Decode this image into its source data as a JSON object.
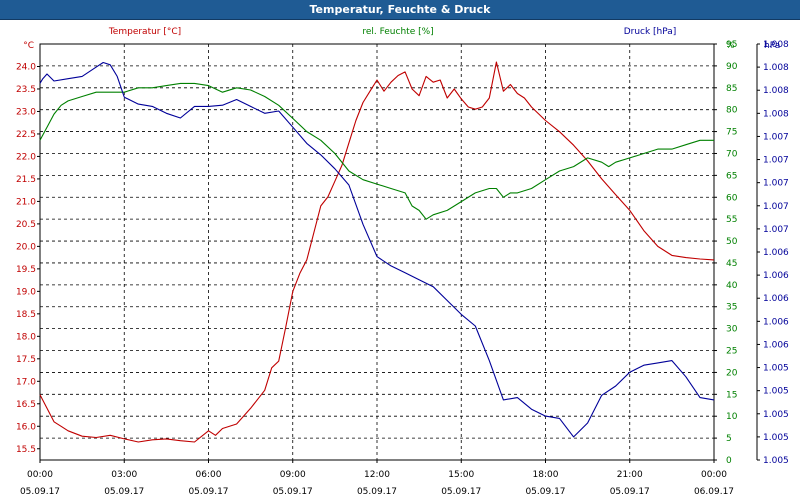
{
  "window": {
    "title": "Temperatur, Feuchte & Druck"
  },
  "colors": {
    "title_bar": "#1f5b94",
    "temperature": "#c00000",
    "humidity": "#008000",
    "pressure": "#000099",
    "grid": "#000000"
  },
  "chart_data": {
    "type": "line",
    "title": "Temperatur, Feuchte & Druck",
    "grid": true,
    "x_axis": {
      "range": [
        "05.09.17 00:00",
        "06.09.17 00:00"
      ],
      "tick_times": [
        "00:00",
        "03:00",
        "06:00",
        "09:00",
        "12:00",
        "15:00",
        "18:00",
        "21:00",
        "00:00"
      ],
      "tick_dates": [
        "05.09.17",
        "05.09.17",
        "05.09.17",
        "05.09.17",
        "05.09.17",
        "05.09.17",
        "05.09.17",
        "05.09.17",
        "06.09.17"
      ]
    },
    "axes": {
      "temperature": {
        "label": "Temperatur [°C]",
        "unit": "°C",
        "side": "left",
        "range": [
          15.25,
          24.5
        ],
        "ticks": [
          "15.5",
          "16.0",
          "16.5",
          "17.0",
          "17.5",
          "18.0",
          "18.5",
          "19.0",
          "19.5",
          "20.0",
          "20.5",
          "21.0",
          "21.5",
          "22.0",
          "22.5",
          "23.0",
          "23.5",
          "24.0"
        ]
      },
      "humidity": {
        "label": "rel. Feuchte [%]",
        "unit": "%",
        "side": "right",
        "range": [
          0,
          95
        ],
        "ticks": [
          "0",
          "5",
          "10",
          "15",
          "20",
          "25",
          "30",
          "35",
          "40",
          "45",
          "50",
          "55",
          "60",
          "65",
          "70",
          "75",
          "80",
          "85",
          "90",
          "95"
        ]
      },
      "pressure": {
        "label": "Druck [hPa]",
        "unit": "hPa",
        "side": "right",
        "range": [
          0,
          18
        ],
        "ticks": [
          "1.005",
          "1.005",
          "1.005",
          "1.005",
          "1.005",
          "1.006",
          "1.006",
          "1.006",
          "1.006",
          "1.006",
          "1.007",
          "1.007",
          "1.007",
          "1.007",
          "1.007",
          "1.008",
          "1.008",
          "1.008",
          "1.008"
        ]
      }
    },
    "series": [
      {
        "name": "Temperatur [°C]",
        "axis": "temperature",
        "x_hours": [
          0,
          0.25,
          0.5,
          0.75,
          1,
          1.5,
          2,
          2.5,
          3,
          3.5,
          4,
          4.5,
          5,
          5.5,
          6,
          6.25,
          6.5,
          7,
          7.5,
          8,
          8.25,
          8.5,
          8.75,
          9,
          9.25,
          9.5,
          9.75,
          10,
          10.25,
          10.5,
          10.75,
          11,
          11.25,
          11.5,
          11.75,
          12,
          12.25,
          12.5,
          12.75,
          13,
          13.25,
          13.5,
          13.75,
          14,
          14.25,
          14.5,
          14.75,
          15,
          15.25,
          15.5,
          15.75,
          16,
          16.25,
          16.5,
          16.75,
          17,
          17.25,
          17.5,
          18,
          18.5,
          19,
          19.5,
          20,
          20.5,
          21,
          21.5,
          22,
          22.5,
          23,
          23.5,
          24
        ],
        "values": [
          16.7,
          16.4,
          16.1,
          16.0,
          15.9,
          15.78,
          15.75,
          15.8,
          15.72,
          15.65,
          15.7,
          15.72,
          15.68,
          15.65,
          15.9,
          15.8,
          15.95,
          16.05,
          16.4,
          16.8,
          17.3,
          17.45,
          18.2,
          19.0,
          19.4,
          19.7,
          20.3,
          20.9,
          21.1,
          21.45,
          21.8,
          22.3,
          22.8,
          23.2,
          23.45,
          23.7,
          23.45,
          23.65,
          23.8,
          23.88,
          23.5,
          23.35,
          23.78,
          23.65,
          23.7,
          23.3,
          23.5,
          23.28,
          23.1,
          23.05,
          23.1,
          23.3,
          24.1,
          23.45,
          23.6,
          23.4,
          23.3,
          23.1,
          22.8,
          22.55,
          22.25,
          21.9,
          21.5,
          21.15,
          20.8,
          20.35,
          20.0,
          19.8,
          19.75,
          19.72,
          19.7
        ]
      },
      {
        "name": "rel. Feuchte [%]",
        "axis": "humidity",
        "x_hours": [
          0,
          0.25,
          0.5,
          0.75,
          1,
          1.5,
          2,
          2.5,
          3,
          3.5,
          4,
          4.5,
          5,
          5.5,
          6,
          6.5,
          7,
          7.5,
          8,
          8.5,
          9,
          9.5,
          10,
          10.5,
          11,
          11.5,
          12,
          12.5,
          13,
          13.25,
          13.5,
          13.75,
          14,
          14.5,
          15,
          15.5,
          16,
          16.25,
          16.5,
          16.75,
          17,
          17.5,
          18,
          18.5,
          19,
          19.5,
          20,
          20.25,
          20.5,
          21,
          21.5,
          22,
          22.5,
          23,
          23.5,
          24
        ],
        "values": [
          73,
          76,
          79,
          81,
          82,
          83,
          84,
          84,
          84,
          85,
          85,
          85.5,
          86,
          86,
          85.5,
          84,
          85,
          84.5,
          83,
          81,
          78,
          75,
          73,
          70,
          66,
          64,
          63,
          62,
          61,
          58,
          57,
          55,
          56,
          57,
          59,
          61,
          62,
          62,
          60,
          61,
          61,
          62,
          64,
          66,
          67,
          69,
          68,
          67,
          68,
          69,
          70,
          71,
          71,
          72,
          73,
          73
        ]
      },
      {
        "name": "Druck [hPa]",
        "axis": "pressure",
        "x_hours": [
          0,
          0.1,
          0.25,
          0.5,
          1,
          1.5,
          2,
          2.25,
          2.5,
          2.75,
          3,
          3.5,
          4,
          4.5,
          5,
          5.5,
          6,
          6.5,
          7,
          7.5,
          8,
          8.5,
          9,
          9.5,
          10,
          10.5,
          11,
          11.5,
          12,
          12.5,
          13,
          13.5,
          14,
          14.5,
          15,
          15.5,
          16,
          16.5,
          17,
          17.5,
          18,
          18.5,
          19,
          19.5,
          20,
          20.5,
          21,
          21.5,
          22,
          22.5,
          23,
          23.5,
          24
        ],
        "values": [
          16.3,
          16.5,
          16.7,
          16.4,
          16.5,
          16.6,
          17.0,
          17.2,
          17.1,
          16.6,
          15.7,
          15.4,
          15.3,
          15.0,
          14.8,
          15.3,
          15.3,
          15.35,
          15.6,
          15.3,
          15.0,
          15.1,
          14.4,
          13.7,
          13.2,
          12.6,
          11.9,
          10.2,
          8.8,
          8.4,
          8.1,
          7.8,
          7.5,
          6.9,
          6.3,
          5.8,
          4.3,
          2.6,
          2.7,
          2.2,
          1.9,
          1.8,
          1.0,
          1.6,
          2.8,
          3.2,
          3.8,
          4.1,
          4.2,
          4.3,
          3.6,
          2.7,
          2.6
        ]
      }
    ]
  }
}
